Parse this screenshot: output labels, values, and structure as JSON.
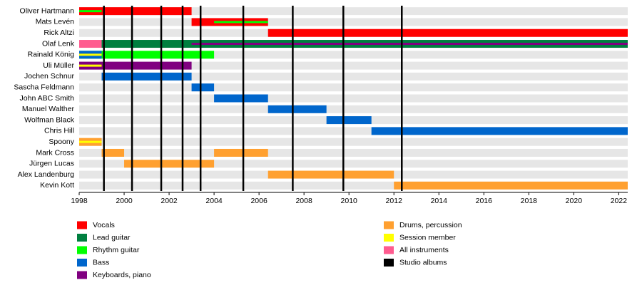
{
  "chart_data": {
    "type": "timeline",
    "categories": [
      "Oliver Hartmann",
      "Mats Levén",
      "Rick Altzi",
      "Olaf Lenk",
      "Rainald König",
      "Uli Müller",
      "Jochen Schnur",
      "Sascha Feldmann",
      "John ABC Smith",
      "Manuel Walther",
      "Wolfman Black",
      "Chris Hill",
      "Spoony",
      "Mark Cross",
      "Jürgen Lucas",
      "Alex Landenburg",
      "Kevin Kott"
    ],
    "xlim": [
      1998,
      2022.4
    ],
    "xticks": [
      1998,
      2000,
      2002,
      2004,
      2006,
      2008,
      2010,
      2012,
      2014,
      2016,
      2018,
      2020,
      2022
    ],
    "legend": [
      {
        "name": "Vocals",
        "color": "#ff0000"
      },
      {
        "name": "Lead guitar",
        "color": "#007f3f"
      },
      {
        "name": "Rhythm guitar",
        "color": "#00ff00"
      },
      {
        "name": "Bass",
        "color": "#0066cc"
      },
      {
        "name": "Keyboards, piano",
        "color": "#800080"
      },
      {
        "name": "Drums, percussion",
        "color": "#ffa030"
      },
      {
        "name": "Session member",
        "color": "#ffff00"
      },
      {
        "name": "All instruments",
        "color": "#ff5b8f"
      },
      {
        "name": "Studio albums",
        "color": "#000000"
      }
    ],
    "album_legend": 8,
    "albums": [
      1999.1,
      2000.35,
      2001.65,
      2002.6,
      2003.4,
      2005.3,
      2007.5,
      2009.75,
      2012.35
    ],
    "segments": [
      {
        "row": 0,
        "start": 1998,
        "end": 2003,
        "role": 0,
        "stripe": false
      },
      {
        "row": 0,
        "start": 1998,
        "end": 1999,
        "role": 2,
        "stripe": true
      },
      {
        "row": 1,
        "start": 2003,
        "end": 2006.4,
        "role": 0,
        "stripe": false
      },
      {
        "row": 1,
        "start": 2004,
        "end": 2006.4,
        "role": 2,
        "stripe": true
      },
      {
        "row": 2,
        "start": 2006.4,
        "end": 2022.4,
        "role": 0,
        "stripe": false
      },
      {
        "row": 3,
        "start": 1998,
        "end": 1999,
        "role": 7,
        "stripe": false
      },
      {
        "row": 3,
        "start": 1999,
        "end": 2022.4,
        "role": 1,
        "stripe": false
      },
      {
        "row": 3,
        "start": 2003,
        "end": 2022.4,
        "role": 4,
        "stripe": true
      },
      {
        "row": 4,
        "start": 1998,
        "end": 2004,
        "role": 2,
        "stripe": false
      },
      {
        "row": 4,
        "start": 1998,
        "end": 1999,
        "role": 3,
        "stripe": false
      },
      {
        "row": 4,
        "start": 1998,
        "end": 1999,
        "role": 6,
        "stripe": true
      },
      {
        "row": 5,
        "start": 1998,
        "end": 2003,
        "role": 4,
        "stripe": false
      },
      {
        "row": 5,
        "start": 1998,
        "end": 1999,
        "role": 6,
        "stripe": true
      },
      {
        "row": 6,
        "start": 1999,
        "end": 2003,
        "role": 3,
        "stripe": false
      },
      {
        "row": 7,
        "start": 2003,
        "end": 2004,
        "role": 3,
        "stripe": false
      },
      {
        "row": 8,
        "start": 2004,
        "end": 2006.4,
        "role": 3,
        "stripe": false
      },
      {
        "row": 9,
        "start": 2006.4,
        "end": 2009,
        "role": 3,
        "stripe": false
      },
      {
        "row": 10,
        "start": 2009,
        "end": 2011,
        "role": 3,
        "stripe": false
      },
      {
        "row": 11,
        "start": 2011,
        "end": 2022.4,
        "role": 3,
        "stripe": false
      },
      {
        "row": 12,
        "start": 1998,
        "end": 1999,
        "role": 5,
        "stripe": false
      },
      {
        "row": 12,
        "start": 1998,
        "end": 1999,
        "role": 6,
        "stripe": true
      },
      {
        "row": 13,
        "start": 1999,
        "end": 2000,
        "role": 5,
        "stripe": false
      },
      {
        "row": 13,
        "start": 2004,
        "end": 2006.4,
        "role": 5,
        "stripe": false
      },
      {
        "row": 14,
        "start": 2000,
        "end": 2004,
        "role": 5,
        "stripe": false
      },
      {
        "row": 15,
        "start": 2006.4,
        "end": 2012,
        "role": 5,
        "stripe": false
      },
      {
        "row": 16,
        "start": 2012,
        "end": 2022.4,
        "role": 5,
        "stripe": false
      }
    ]
  }
}
